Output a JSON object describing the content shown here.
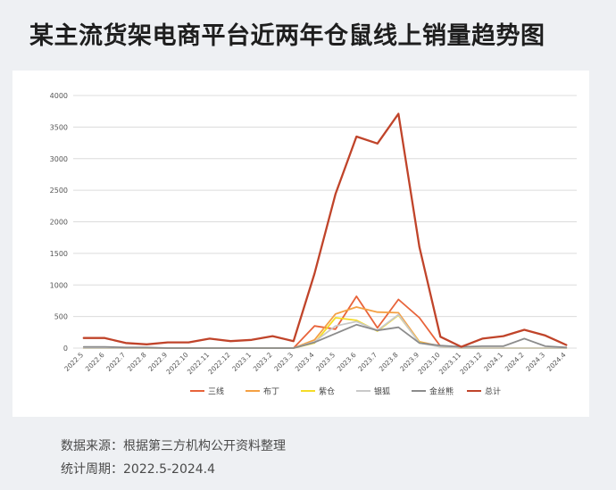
{
  "title": "某主流货架电商平台近两年仓鼠线上销量趋势图",
  "footer": {
    "source": "数据来源：根据第三方机构公开资料整理",
    "period": "统计周期：2022.5-2024.4"
  },
  "chart_data": {
    "type": "line",
    "title": "",
    "xlabel": "",
    "ylabel": "",
    "ylim": [
      0,
      4000
    ],
    "yticks": [
      0,
      500,
      1000,
      1500,
      2000,
      2500,
      3000,
      3500,
      4000
    ],
    "grid": true,
    "legend_position": "bottom",
    "categories": [
      "2022.5",
      "2022.6",
      "2022.7",
      "2022.8",
      "2022.9",
      "2022.10",
      "2022.11",
      "2022.12",
      "2023.1",
      "2023.2",
      "2023.3",
      "2023.4",
      "2023.5",
      "2023.6",
      "2023.7",
      "2023.8",
      "2023.9",
      "2023.10",
      "2023.11",
      "2023.12",
      "2024.1",
      "2024.2",
      "2024.3",
      "2024.4"
    ],
    "series": [
      {
        "name": "三线",
        "color": "#e8633a",
        "values": [
          0,
          0,
          0,
          0,
          0,
          0,
          0,
          0,
          0,
          0,
          0,
          350,
          300,
          820,
          320,
          770,
          480,
          30,
          0,
          0,
          0,
          0,
          0,
          0
        ]
      },
      {
        "name": "布丁",
        "color": "#f4a043",
        "values": [
          0,
          0,
          0,
          0,
          0,
          0,
          0,
          0,
          0,
          0,
          0,
          130,
          540,
          650,
          570,
          560,
          100,
          30,
          0,
          0,
          0,
          0,
          0,
          0
        ]
      },
      {
        "name": "紫仓",
        "color": "#f5dc27",
        "values": [
          0,
          0,
          0,
          0,
          0,
          0,
          0,
          0,
          0,
          0,
          0,
          80,
          480,
          440,
          270,
          520,
          90,
          20,
          0,
          0,
          0,
          0,
          0,
          0
        ]
      },
      {
        "name": "银狐",
        "color": "#c9c9c9",
        "values": [
          0,
          0,
          0,
          0,
          0,
          0,
          0,
          0,
          0,
          0,
          0,
          100,
          350,
          420,
          280,
          530,
          80,
          20,
          0,
          0,
          0,
          0,
          0,
          0
        ]
      },
      {
        "name": "金丝熊",
        "color": "#8c8c8c",
        "values": [
          20,
          20,
          10,
          10,
          0,
          0,
          0,
          0,
          0,
          0,
          0,
          90,
          230,
          370,
          280,
          330,
          80,
          40,
          20,
          30,
          30,
          150,
          30,
          10
        ]
      },
      {
        "name": "总计",
        "color": "#c0442a",
        "values": [
          160,
          160,
          80,
          60,
          90,
          90,
          150,
          110,
          130,
          190,
          110,
          1180,
          2440,
          3350,
          3240,
          3710,
          1600,
          180,
          20,
          150,
          190,
          290,
          200,
          50
        ]
      }
    ]
  }
}
